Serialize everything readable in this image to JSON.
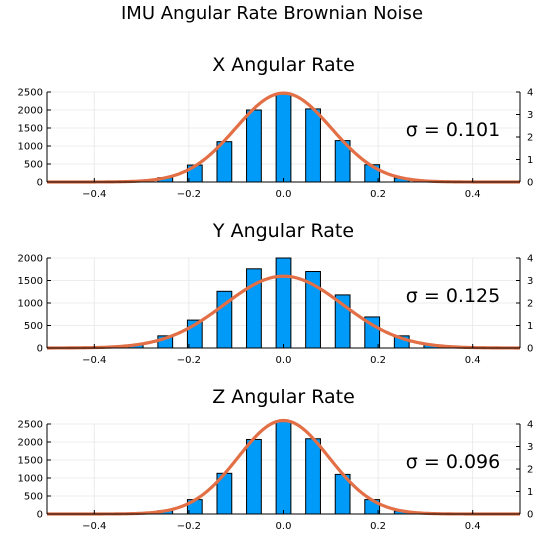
{
  "figure": {
    "title": "IMU Angular Rate Brownian Noise"
  },
  "colors": {
    "bar": "#009af9",
    "curve": "#e26f46",
    "grid": "#e6e6e6",
    "axis": "#000000"
  },
  "chart_data": [
    {
      "type": "bar",
      "title": "X Angular Rate",
      "annotation": "σ = 0.101",
      "xlim": [
        -0.5,
        0.5
      ],
      "xticks": [
        -0.4,
        -0.2,
        0.0,
        0.2,
        0.4
      ],
      "ylim": [
        0,
        2500
      ],
      "yticks": [
        0,
        500,
        1000,
        1500,
        2000,
        2500
      ],
      "y2lim": [
        0,
        4
      ],
      "y2ticks": [
        0,
        1,
        2,
        3,
        4
      ],
      "bin_width": 0.0625,
      "bar_width_fraction": 0.5,
      "bins_x": [
        -0.25,
        -0.1875,
        -0.125,
        -0.0625,
        0.0,
        0.0625,
        0.125,
        0.1875,
        0.25
      ],
      "bins_y": [
        120,
        470,
        1120,
        2000,
        2450,
        2030,
        1150,
        480,
        110
      ],
      "curve": {
        "mu": 0.0,
        "sigma": 0.101,
        "xrange": [
          -0.5,
          0.5
        ]
      }
    },
    {
      "type": "bar",
      "title": "Y Angular Rate",
      "annotation": "σ = 0.125",
      "xlim": [
        -0.5,
        0.5
      ],
      "xticks": [
        -0.4,
        -0.2,
        0.0,
        0.2,
        0.4
      ],
      "ylim": [
        0,
        2000
      ],
      "yticks": [
        0,
        500,
        1000,
        1500,
        2000
      ],
      "y2lim": [
        0,
        4
      ],
      "y2ticks": [
        0,
        1,
        2,
        3,
        4
      ],
      "bin_width": 0.0625,
      "bar_width_fraction": 0.5,
      "bins_x": [
        -0.3125,
        -0.25,
        -0.1875,
        -0.125,
        -0.0625,
        0.0,
        0.0625,
        0.125,
        0.1875,
        0.25,
        0.3125
      ],
      "bins_y": [
        70,
        270,
        620,
        1260,
        1760,
        2000,
        1700,
        1180,
        690,
        270,
        70
      ],
      "curve": {
        "mu": 0.0,
        "sigma": 0.125,
        "xrange": [
          -0.5,
          0.5
        ]
      }
    },
    {
      "type": "bar",
      "title": "Z Angular Rate",
      "annotation": "σ = 0.096",
      "xlim": [
        -0.5,
        0.5
      ],
      "xticks": [
        -0.4,
        -0.2,
        0.0,
        0.2,
        0.4
      ],
      "ylim": [
        0,
        2500
      ],
      "yticks": [
        0,
        500,
        1000,
        1500,
        2000,
        2500
      ],
      "y2lim": [
        0,
        4
      ],
      "y2ticks": [
        0,
        1,
        2,
        3,
        4
      ],
      "bin_width": 0.0625,
      "bar_width_fraction": 0.5,
      "bins_x": [
        -0.25,
        -0.1875,
        -0.125,
        -0.0625,
        0.0,
        0.0625,
        0.125,
        0.1875,
        0.25
      ],
      "bins_y": [
        90,
        400,
        1130,
        2070,
        2590,
        2090,
        1100,
        400,
        80
      ],
      "curve": {
        "mu": 0.0,
        "sigma": 0.096,
        "xrange": [
          -0.5,
          0.5
        ]
      }
    }
  ]
}
